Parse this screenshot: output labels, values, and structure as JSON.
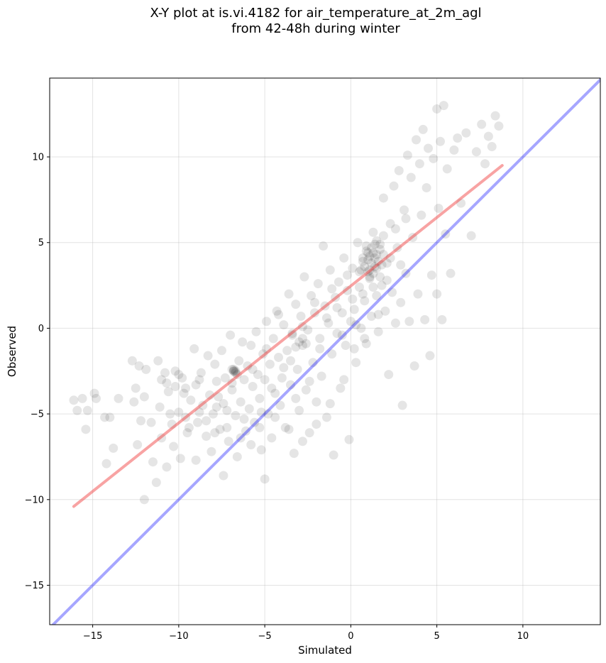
{
  "chart_data": {
    "type": "scatter",
    "title_line1": "X-Y plot at is.vi.4182 for air_temperature_at_2m_agl",
    "title_line2": "from 42-48h during winter",
    "xlabel": "Simulated",
    "ylabel": "Observed",
    "xlim": [
      -17.5,
      14.5
    ],
    "ylim": [
      -17.3,
      14.6
    ],
    "xticks": [
      -15,
      -10,
      -5,
      0,
      5,
      10
    ],
    "yticks": [
      -15,
      -10,
      -5,
      0,
      5,
      10
    ],
    "xtick_labels": [
      "−15",
      "−10",
      "−5",
      "0",
      "5",
      "10"
    ],
    "ytick_labels": [
      "−15",
      "−10",
      "−5",
      "0",
      "5",
      "10"
    ],
    "grid": true,
    "point_color": "#000000",
    "point_alpha": 0.1,
    "one_to_one_line": {
      "x": [
        -17.5,
        14.5
      ],
      "y": [
        -17.5,
        14.5
      ],
      "color": "#0000ff",
      "alpha": 0.35
    },
    "regression_line": {
      "x": [
        -16.1,
        8.8
      ],
      "y": [
        -10.4,
        9.5
      ],
      "color": "#f03232",
      "alpha": 0.45
    },
    "points": [
      [
        -16.1,
        -4.2
      ],
      [
        -15.6,
        -4.1
      ],
      [
        -15.9,
        -4.8
      ],
      [
        -15.3,
        -4.8
      ],
      [
        -15.4,
        -5.9
      ],
      [
        -14.9,
        -3.8
      ],
      [
        -14.8,
        -4.1
      ],
      [
        -14.3,
        -5.2
      ],
      [
        -14.2,
        -7.9
      ],
      [
        -14.0,
        -5.2
      ],
      [
        -13.8,
        -7.0
      ],
      [
        -13.5,
        -4.1
      ],
      [
        -12.7,
        -1.9
      ],
      [
        -12.6,
        -4.3
      ],
      [
        -12.5,
        -3.5
      ],
      [
        -12.4,
        -6.8
      ],
      [
        -12.3,
        -2.2
      ],
      [
        -12.2,
        -5.4
      ],
      [
        -12.0,
        -4.0
      ],
      [
        -12.0,
        -10.0
      ],
      [
        -11.9,
        -2.4
      ],
      [
        -11.6,
        -5.5
      ],
      [
        -11.5,
        -7.8
      ],
      [
        -11.3,
        -9.0
      ],
      [
        -11.2,
        -1.9
      ],
      [
        -11.1,
        -4.6
      ],
      [
        -11.0,
        -6.4
      ],
      [
        -10.8,
        -2.6
      ],
      [
        -10.7,
        -3.2
      ],
      [
        -10.7,
        -8.1
      ],
      [
        -10.5,
        -5.0
      ],
      [
        -10.4,
        -5.6
      ],
      [
        -10.3,
        -6.9
      ],
      [
        -10.2,
        -3.4
      ],
      [
        -10.0,
        -4.9
      ],
      [
        -9.9,
        -7.6
      ],
      [
        -9.8,
        -2.9
      ],
      [
        -9.7,
        -3.8
      ],
      [
        -9.6,
        -5.2
      ],
      [
        -9.5,
        -6.1
      ],
      [
        -9.3,
        -4.2
      ],
      [
        -9.1,
        -1.2
      ],
      [
        -9.0,
        -3.3
      ],
      [
        -9.0,
        -7.7
      ],
      [
        -8.9,
        -5.5
      ],
      [
        -8.7,
        -2.6
      ],
      [
        -8.6,
        -4.5
      ],
      [
        -8.4,
        -6.3
      ],
      [
        -8.3,
        -1.6
      ],
      [
        -8.2,
        -3.9
      ],
      [
        -8.1,
        -7.2
      ],
      [
        -8.0,
        -5.0
      ],
      [
        -7.9,
        -2.1
      ],
      [
        -7.8,
        -3.1
      ],
      [
        -7.7,
        -4.0
      ],
      [
        -7.6,
        -5.9
      ],
      [
        -7.5,
        -1.3
      ],
      [
        -7.4,
        -8.6
      ],
      [
        -7.3,
        -2.9
      ],
      [
        -7.2,
        -4.8
      ],
      [
        -7.1,
        -6.6
      ],
      [
        -7.0,
        -0.4
      ],
      [
        -6.9,
        -3.6
      ],
      [
        -6.8,
        -2.5
      ],
      [
        -6.7,
        -5.1
      ],
      [
        -6.6,
        -7.5
      ],
      [
        -6.5,
        -1.9
      ],
      [
        -6.4,
        -4.3
      ],
      [
        -6.3,
        -0.8
      ],
      [
        -6.2,
        -3.0
      ],
      [
        -6.1,
        -6.0
      ],
      [
        -6.0,
        -2.2
      ],
      [
        -5.9,
        -4.7
      ],
      [
        -5.8,
        -1.0
      ],
      [
        -5.7,
        -3.4
      ],
      [
        -5.6,
        -5.5
      ],
      [
        -5.5,
        -0.2
      ],
      [
        -5.4,
        -2.7
      ],
      [
        -5.3,
        -4.1
      ],
      [
        -5.2,
        -7.1
      ],
      [
        -5.1,
        -1.5
      ],
      [
        -5.0,
        -3.0
      ],
      [
        -5.0,
        -8.8
      ],
      [
        -4.9,
        0.4
      ],
      [
        -4.8,
        -5.0
      ],
      [
        -4.7,
        -2.1
      ],
      [
        -4.6,
        -6.4
      ],
      [
        -4.5,
        -0.6
      ],
      [
        -4.4,
        -3.8
      ],
      [
        -4.3,
        1.0
      ],
      [
        -4.2,
        -1.7
      ],
      [
        -4.1,
        -4.5
      ],
      [
        -4.0,
        -2.9
      ],
      [
        -3.9,
        0.2
      ],
      [
        -3.8,
        -5.8
      ],
      [
        -3.7,
        -1.3
      ],
      [
        -3.6,
        2.0
      ],
      [
        -3.5,
        -3.3
      ],
      [
        -3.4,
        -0.3
      ],
      [
        -3.3,
        -7.3
      ],
      [
        -3.2,
        1.4
      ],
      [
        -3.1,
        -2.4
      ],
      [
        -3.0,
        -4.8
      ],
      [
        -2.9,
        0.7
      ],
      [
        -2.8,
        -1.0
      ],
      [
        -2.7,
        3.0
      ],
      [
        -2.6,
        -3.6
      ],
      [
        -2.5,
        -0.1
      ],
      [
        -2.4,
        -6.1
      ],
      [
        -2.3,
        1.9
      ],
      [
        -2.2,
        -2.0
      ],
      [
        -2.1,
        0.9
      ],
      [
        -2.0,
        -4.3
      ],
      [
        -1.9,
        2.6
      ],
      [
        -1.8,
        -0.6
      ],
      [
        -1.7,
        -2.8
      ],
      [
        -1.6,
        4.8
      ],
      [
        -1.5,
        1.3
      ],
      [
        -1.4,
        -5.2
      ],
      [
        -1.3,
        0.3
      ],
      [
        -1.2,
        3.4
      ],
      [
        -1.1,
        -1.5
      ],
      [
        -1.0,
        -7.4
      ],
      [
        -0.9,
        1.8
      ],
      [
        -0.8,
        -0.3
      ],
      [
        -0.7,
        2.7
      ],
      [
        -0.6,
        -3.5
      ],
      [
        -0.5,
        0.9
      ],
      [
        -0.4,
        4.1
      ],
      [
        -0.3,
        -1.0
      ],
      [
        -0.2,
        2.2
      ],
      [
        -0.1,
        -6.5
      ],
      [
        0.0,
        0.4
      ],
      [
        0.1,
        3.5
      ],
      [
        0.2,
        1.1
      ],
      [
        0.3,
        -2.0
      ],
      [
        0.4,
        5.0
      ],
      [
        0.5,
        2.4
      ],
      [
        0.6,
        0.0
      ],
      [
        0.7,
        3.9
      ],
      [
        0.8,
        1.6
      ],
      [
        0.9,
        -0.9
      ],
      [
        1.0,
        4.4
      ],
      [
        1.1,
        2.9
      ],
      [
        1.2,
        0.7
      ],
      [
        1.3,
        5.6
      ],
      [
        1.4,
        3.6
      ],
      [
        1.5,
        1.9
      ],
      [
        1.6,
        -0.2
      ],
      [
        1.7,
        4.9
      ],
      [
        1.8,
        2.5
      ],
      [
        1.9,
        7.6
      ],
      [
        2.0,
        1.0
      ],
      [
        2.1,
        3.8
      ],
      [
        2.2,
        -2.7
      ],
      [
        2.3,
        6.1
      ],
      [
        2.4,
        2.1
      ],
      [
        2.5,
        8.3
      ],
      [
        2.6,
        0.3
      ],
      [
        2.7,
        4.7
      ],
      [
        2.8,
        9.2
      ],
      [
        2.9,
        1.5
      ],
      [
        3.0,
        -4.5
      ],
      [
        3.1,
        6.9
      ],
      [
        3.2,
        3.2
      ],
      [
        3.3,
        10.1
      ],
      [
        3.4,
        0.4
      ],
      [
        3.5,
        8.8
      ],
      [
        3.6,
        5.3
      ],
      [
        3.7,
        -2.2
      ],
      [
        3.8,
        11.0
      ],
      [
        3.9,
        2.0
      ],
      [
        4.0,
        9.6
      ],
      [
        4.1,
        6.6
      ],
      [
        4.2,
        11.6
      ],
      [
        4.3,
        0.5
      ],
      [
        4.4,
        8.2
      ],
      [
        4.5,
        10.5
      ],
      [
        4.6,
        -1.6
      ],
      [
        4.7,
        3.1
      ],
      [
        4.8,
        9.9
      ],
      [
        5.0,
        2.0
      ],
      [
        5.0,
        12.8
      ],
      [
        5.1,
        7.0
      ],
      [
        5.2,
        10.9
      ],
      [
        5.3,
        0.5
      ],
      [
        5.4,
        13.0
      ],
      [
        5.5,
        5.5
      ],
      [
        5.6,
        9.3
      ],
      [
        5.8,
        3.2
      ],
      [
        6.0,
        10.4
      ],
      [
        6.2,
        11.1
      ],
      [
        6.4,
        7.3
      ],
      [
        6.7,
        11.4
      ],
      [
        7.0,
        5.4
      ],
      [
        7.3,
        10.3
      ],
      [
        7.6,
        11.9
      ],
      [
        7.8,
        9.6
      ],
      [
        8.0,
        11.2
      ],
      [
        8.2,
        10.6
      ],
      [
        8.4,
        12.4
      ],
      [
        8.6,
        11.8
      ],
      [
        -10.2,
        -2.5
      ],
      [
        -9.4,
        -5.8
      ],
      [
        -8.8,
        -3.0
      ],
      [
        -7.9,
        -6.1
      ],
      [
        -7.4,
        -4.4
      ],
      [
        -6.9,
        -3.2
      ],
      [
        -6.6,
        -2.7
      ],
      [
        -6.2,
        -5.3
      ],
      [
        -5.7,
        -2.4
      ],
      [
        -5.3,
        -5.8
      ],
      [
        -4.9,
        -1.2
      ],
      [
        -4.6,
        -3.5
      ],
      [
        -4.2,
        0.8
      ],
      [
        -3.9,
        -2.3
      ],
      [
        -3.5,
        -1.9
      ],
      [
        -3.2,
        -4.1
      ],
      [
        -2.8,
        0.1
      ],
      [
        -2.4,
        -3.1
      ],
      [
        -2.1,
        1.5
      ],
      [
        -1.8,
        -1.2
      ],
      [
        -1.4,
        0.6
      ],
      [
        -1.1,
        2.3
      ],
      [
        -0.8,
        1.2
      ],
      [
        -0.5,
        -0.4
      ],
      [
        -0.2,
        3.1
      ],
      [
        0.1,
        1.7
      ],
      [
        0.3,
        0.2
      ],
      [
        0.5,
        3.3
      ],
      [
        0.7,
        2.0
      ],
      [
        0.9,
        4.8
      ],
      [
        1.1,
        3.4
      ],
      [
        1.3,
        2.4
      ],
      [
        1.5,
        4.3
      ],
      [
        1.7,
        3.0
      ],
      [
        1.9,
        5.4
      ],
      [
        2.1,
        2.8
      ],
      [
        2.3,
        4.1
      ],
      [
        2.6,
        5.8
      ],
      [
        2.9,
        3.7
      ],
      [
        3.2,
        6.4
      ],
      [
        0.8,
        3.6
      ],
      [
        1.0,
        4.0
      ],
      [
        1.1,
        4.2
      ],
      [
        1.2,
        3.8
      ],
      [
        1.3,
        4.4
      ],
      [
        1.4,
        4.1
      ],
      [
        1.5,
        3.5
      ],
      [
        1.2,
        4.7
      ],
      [
        0.9,
        4.5
      ],
      [
        1.6,
        3.9
      ],
      [
        1.3,
        3.2
      ],
      [
        1.0,
        3.3
      ],
      [
        1.7,
        4.6
      ],
      [
        0.7,
        4.1
      ],
      [
        1.4,
        4.9
      ],
      [
        1.1,
        3.0
      ],
      [
        1.8,
        3.7
      ],
      [
        0.6,
        3.4
      ],
      [
        1.5,
        5.1
      ],
      [
        1.9,
        4.3
      ],
      [
        -6.8,
        -2.4
      ],
      [
        -6.8,
        -2.5
      ],
      [
        -6.7,
        -2.6
      ],
      [
        -6.9,
        -2.4
      ],
      [
        -6.7,
        -2.5
      ],
      [
        -3.0,
        -0.8
      ],
      [
        -2.8,
        -0.6
      ],
      [
        -3.2,
        -1.1
      ],
      [
        -2.6,
        -0.9
      ],
      [
        -3.4,
        -0.4
      ],
      [
        -11.0,
        -3.0
      ],
      [
        -10.6,
        -3.7
      ],
      [
        -10.0,
        -2.7
      ],
      [
        -9.6,
        -3.5
      ],
      [
        -8.8,
        -4.9
      ],
      [
        -8.4,
        -5.4
      ],
      [
        -7.8,
        -4.6
      ],
      [
        -7.2,
        -5.8
      ],
      [
        -6.4,
        -6.4
      ],
      [
        -5.8,
        -6.8
      ],
      [
        -5.2,
        -4.9
      ],
      [
        -4.4,
        -5.2
      ],
      [
        -3.6,
        -5.9
      ],
      [
        -2.8,
        -6.6
      ],
      [
        -2.0,
        -5.6
      ],
      [
        -1.2,
        -4.4
      ],
      [
        -0.4,
        -3.0
      ],
      [
        0.2,
        -1.2
      ],
      [
        0.8,
        -0.6
      ],
      [
        1.6,
        0.8
      ]
    ]
  }
}
